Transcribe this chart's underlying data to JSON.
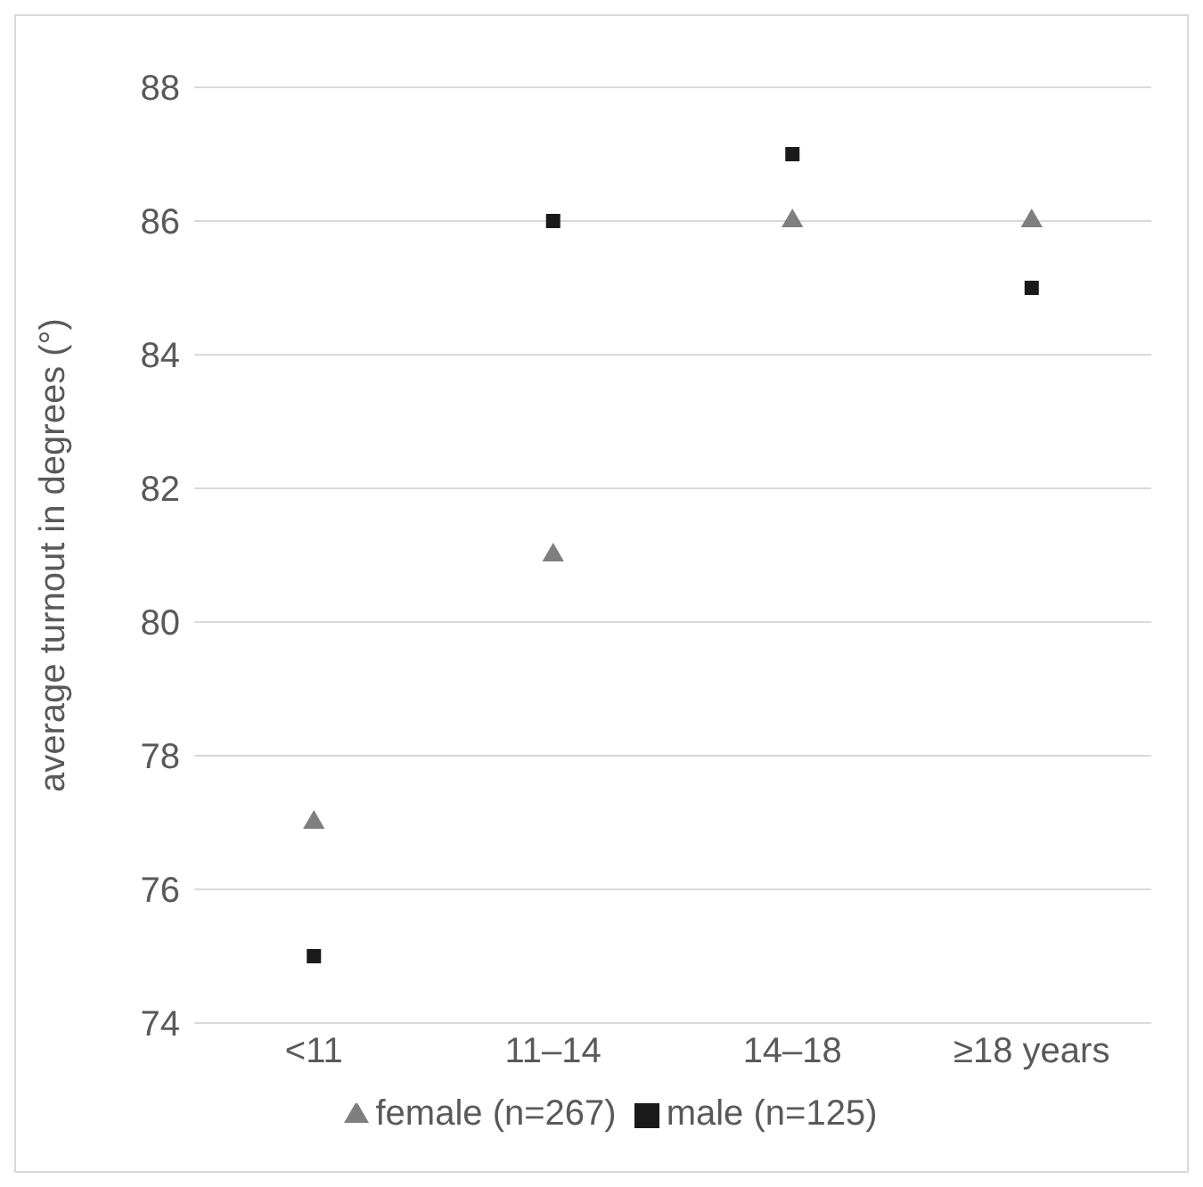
{
  "chart_data": {
    "type": "scatter",
    "ylabel": "average turnout in degrees (°)",
    "categories": [
      "<11",
      "11–14",
      "14–18",
      "≥18 years"
    ],
    "series": [
      {
        "name": "female (n=267)",
        "color": "#7f7f7f",
        "marker": "triangle",
        "values": [
          77,
          81,
          86,
          86
        ]
      },
      {
        "name": "male (n=125)",
        "color": "#1a1a1a",
        "marker": "square",
        "values": [
          75,
          86,
          87,
          85
        ]
      }
    ],
    "ylim": [
      74,
      88
    ],
    "yticks": [
      74,
      76,
      78,
      80,
      82,
      84,
      86,
      88
    ],
    "grid": "y",
    "legend": "bottom"
  }
}
